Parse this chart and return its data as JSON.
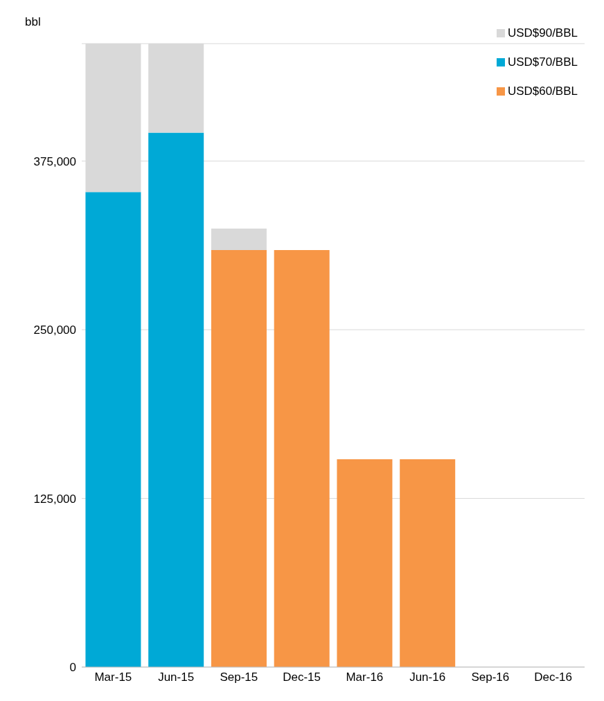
{
  "chart_data": {
    "type": "bar",
    "ylabel": "bbl",
    "categories": [
      "Mar-15",
      "Jun-15",
      "Sep-15",
      "Dec-15",
      "Mar-16",
      "Jun-16",
      "Sep-16",
      "Dec-16"
    ],
    "series": [
      {
        "name": "USD$60/BBL",
        "color": "#f79646",
        "values": [
          null,
          null,
          309000,
          309000,
          154000,
          154000,
          0,
          0
        ]
      },
      {
        "name": "USD$70/BBL",
        "color": "#00a9d6",
        "values": [
          352000,
          396000,
          null,
          null,
          null,
          null,
          null,
          null
        ]
      },
      {
        "name": "USD$90/BBL",
        "color": "#d9d9d9",
        "values": [
          110000,
          66000,
          16000,
          null,
          null,
          null,
          null,
          null
        ]
      }
    ],
    "stacked": true,
    "ylim": [
      0,
      462000
    ],
    "yticks": [
      0,
      {
        "value": 125000,
        "label": "125,000"
      },
      {
        "value": 250000,
        "label": "250,000"
      },
      {
        "value": 375000,
        "label": "375,000"
      }
    ],
    "grid": "y",
    "legend": "top right"
  }
}
